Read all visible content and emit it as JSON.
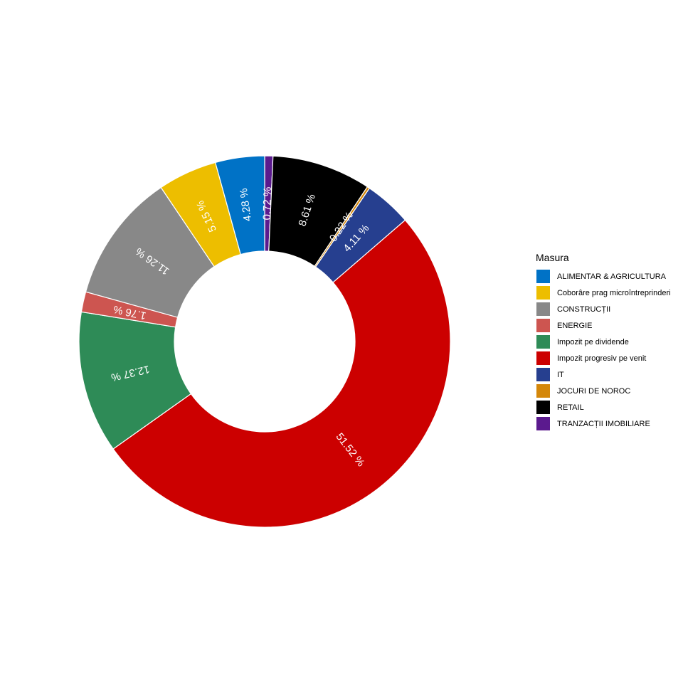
{
  "chart_data": {
    "type": "pie",
    "variant": "donut",
    "legend_title": "Masura",
    "legend_position": "right",
    "slices": [
      {
        "name": "TRANZACȚII IMOBILIARE",
        "value": 0.72,
        "label": "0.72 %",
        "color": "#5B1A8E"
      },
      {
        "name": "RETAIL",
        "value": 8.61,
        "label": "8.61 %",
        "color": "#000000"
      },
      {
        "name": "JOCURI DE NOROC",
        "value": 0.22,
        "label": "0.22 %",
        "color": "#D4870A"
      },
      {
        "name": "IT",
        "value": 4.11,
        "label": "4.11 %",
        "color": "#263F8F"
      },
      {
        "name": "Impozit progresiv pe venit",
        "value": 51.52,
        "label": "51.52 %",
        "color": "#CC0000"
      },
      {
        "name": "Impozit pe dividende",
        "value": 12.37,
        "label": "12.37 %",
        "color": "#2E8B57"
      },
      {
        "name": "ENERGIE",
        "value": 1.76,
        "label": "1.76 %",
        "color": "#CD5550"
      },
      {
        "name": "CONSTRUCȚII",
        "value": 11.26,
        "label": "11.26 %",
        "color": "#888888"
      },
      {
        "name": "Coborâre prag microîntreprinderi",
        "value": 5.15,
        "label": "5.15 %",
        "color": "#EDBE00"
      },
      {
        "name": "ALIMENTAR & AGRICULTURA",
        "value": 4.28,
        "label": "4.28 %",
        "color": "#0072C6"
      }
    ],
    "legend_order": [
      "ALIMENTAR & AGRICULTURA",
      "Coborâre prag microîntreprinderi",
      "CONSTRUCȚII",
      "ENERGIE",
      "Impozit pe dividende",
      "Impozit progresiv pe venit",
      "IT",
      "JOCURI DE NOROC",
      "RETAIL",
      "TRANZACȚII IMOBILIARE"
    ]
  }
}
